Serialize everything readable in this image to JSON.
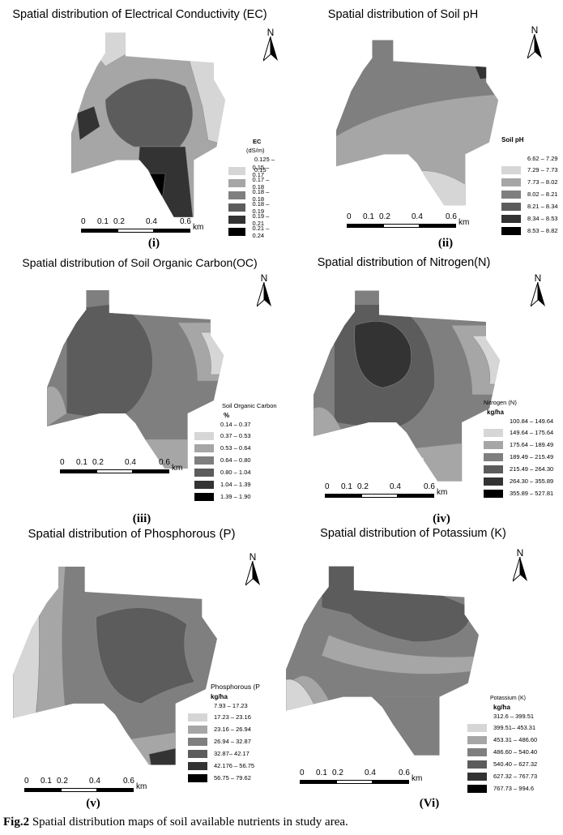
{
  "figure": {
    "caption_label": "Fig.2",
    "caption_text": " Spatial distribution maps of soil available nutrients in study area."
  },
  "compass": {
    "letter": "N"
  },
  "scale": {
    "t0": "0",
    "t1": "0.1",
    "t2": "0.2",
    "t4": "0.4",
    "t6": "0.6",
    "unit": "km"
  },
  "panels": {
    "ec": {
      "title": "Spatial distribution of Electrical Conductivity (EC)",
      "label": "(i)",
      "legend_title": "EC",
      "legend_unit": "(dS/m)",
      "classes": [
        "0.125 – 0.15",
        "0.15 – 0.17",
        "0.17 – 0.18",
        "0.18 – 0.18",
        "0.18 – 0.19",
        "0.19 – 0.21",
        "0.21 – 0.24"
      ],
      "colors": [
        "#ffffff",
        "#d6d6d6",
        "#a6a6a6",
        "#7f7f7f",
        "#5c5c5c",
        "#333333",
        "#000000"
      ]
    },
    "ph": {
      "title": "Spatial distribution of Soil pH",
      "label": "(ii)",
      "legend_title": "Soil pH",
      "classes": [
        "6.62 – 7.29",
        "7.29 – 7.73",
        "7.73 – 8.02",
        "8.02 – 8.21",
        "8.21 – 8.34",
        "8.34 – 8.53",
        "8.53 – 8.82"
      ],
      "colors": [
        "#ffffff",
        "#d6d6d6",
        "#a6a6a6",
        "#7f7f7f",
        "#5c5c5c",
        "#333333",
        "#000000"
      ]
    },
    "oc": {
      "title": "Spatial distribution of Soil Organic Carbon(OC)",
      "label": "(iii)",
      "legend_title": "Soil Organic Carbon",
      "legend_unit": "%",
      "classes": [
        "0.14 – 0.37",
        "0.37 – 0.53",
        "0.53 – 0.64",
        "0.64 – 0.80",
        "0.80 – 1.04",
        "1.04 – 1.39",
        "1.39 – 1.90"
      ],
      "colors": [
        "#ffffff",
        "#d6d6d6",
        "#a6a6a6",
        "#7f7f7f",
        "#5c5c5c",
        "#333333",
        "#000000"
      ]
    },
    "n": {
      "title": "Spatial distribution of Nitrogen(N)",
      "label": "(iv)",
      "legend_title": "Nitrogen (N)",
      "legend_unit": "kg/ha",
      "classes": [
        "100.84 – 149.64",
        "149.64 – 175.64",
        "175.64 – 189.49",
        "189.49 – 215.49",
        "215.49 – 264.30",
        "264.30 – 355.89",
        "355.89 – 527.81"
      ],
      "colors": [
        "#ffffff",
        "#d6d6d6",
        "#a6a6a6",
        "#7f7f7f",
        "#5c5c5c",
        "#333333",
        "#000000"
      ]
    },
    "p": {
      "title": "Spatial distribution of Phosphorous (P)",
      "label": "(v)",
      "legend_title": "Phosphorous (P",
      "legend_unit": "kg/ha",
      "classes": [
        "7.93 – 17.23",
        "17.23 – 23.16",
        "23.16 – 26.94",
        "26.94 – 32.87",
        "32.87– 42.17",
        "42.176 – 56.75",
        "56.75 – 79.62"
      ],
      "colors": [
        "#ffffff",
        "#d6d6d6",
        "#a6a6a6",
        "#7f7f7f",
        "#5c5c5c",
        "#333333",
        "#000000"
      ]
    },
    "k": {
      "title": "Spatial distribution of Potassium (K)",
      "label": "(Vi)",
      "legend_title": "Potassium (K)",
      "legend_unit": "kg/ha",
      "classes": [
        "312.6 – 399.51",
        "399.51– 453.31",
        "453.31 – 486.60",
        "486.60 – 540.40",
        "540.40 – 627.32",
        "627.32 – 767.73",
        "767.73 – 994.6"
      ],
      "colors": [
        "#ffffff",
        "#d6d6d6",
        "#a6a6a6",
        "#7f7f7f",
        "#5c5c5c",
        "#333333",
        "#000000"
      ]
    }
  }
}
